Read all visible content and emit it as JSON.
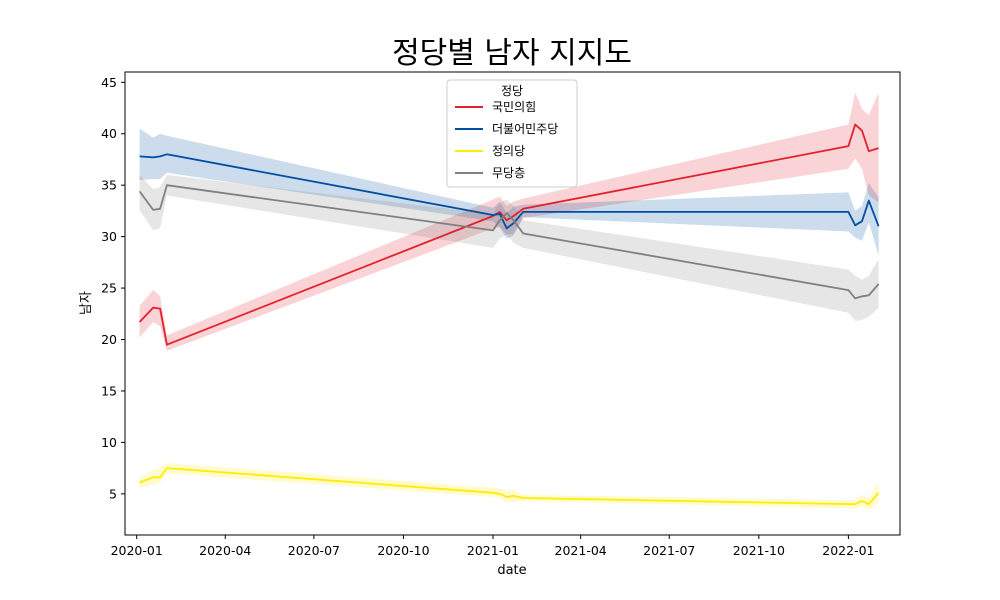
{
  "chart_data": {
    "type": "line",
    "title": "정당별 남자 지지도",
    "xlabel": "date",
    "ylabel": "남자",
    "x_ticks": [
      "2020-01",
      "2020-04",
      "2020-07",
      "2020-10",
      "2021-01",
      "2021-04",
      "2021-07",
      "2021-10",
      "2022-01"
    ],
    "xlim": [
      "2019-12-20",
      "2022-02-23"
    ],
    "y_ticks": [
      5,
      10,
      15,
      20,
      25,
      30,
      35,
      40,
      45
    ],
    "ylim": [
      1,
      46
    ],
    "grid": false,
    "legend": {
      "title": "정당",
      "placement": "upper center"
    },
    "series": [
      {
        "name": "국민의힘",
        "color": "#e3212c",
        "points": [
          {
            "x": "2020-01-04",
            "y": 21.7,
            "lo": 20.2,
            "hi": 23.3
          },
          {
            "x": "2020-01-18",
            "y": 23.1,
            "lo": 21.7,
            "hi": 24.8
          },
          {
            "x": "2020-01-25",
            "y": 23.0,
            "lo": 21.3,
            "hi": 24.2
          },
          {
            "x": "2020-02-01",
            "y": 19.5,
            "lo": 18.9,
            "hi": 20.4
          },
          {
            "x": "2021-01-01",
            "y": 32.0,
            "lo": 30.8,
            "hi": 33.6
          },
          {
            "x": "2021-01-08",
            "y": 32.4,
            "lo": 30.9,
            "hi": 33.9
          },
          {
            "x": "2021-01-15",
            "y": 31.6,
            "lo": 30.2,
            "hi": 33.0
          },
          {
            "x": "2021-01-22",
            "y": 32.0,
            "lo": 30.3,
            "hi": 33.4
          },
          {
            "x": "2021-02-01",
            "y": 32.7,
            "lo": 31.8,
            "hi": 33.7
          },
          {
            "x": "2022-01-01",
            "y": 38.8,
            "lo": 36.6,
            "hi": 40.9
          },
          {
            "x": "2022-01-08",
            "y": 40.9,
            "lo": 37.6,
            "hi": 44.0
          },
          {
            "x": "2022-01-15",
            "y": 40.3,
            "lo": 36.6,
            "hi": 42.4
          },
          {
            "x": "2022-01-22",
            "y": 38.3,
            "lo": 34.0,
            "hi": 41.8
          },
          {
            "x": "2022-02-01",
            "y": 38.6,
            "lo": 33.3,
            "hi": 44.0
          }
        ]
      },
      {
        "name": "더불어민주당",
        "color": "#004ea2",
        "points": [
          {
            "x": "2020-01-04",
            "y": 37.8,
            "lo": 35.5,
            "hi": 40.5
          },
          {
            "x": "2020-01-18",
            "y": 37.7,
            "lo": 35.6,
            "hi": 39.6
          },
          {
            "x": "2020-01-25",
            "y": 37.8,
            "lo": 35.6,
            "hi": 40.0
          },
          {
            "x": "2020-02-01",
            "y": 38.0,
            "lo": 36.2,
            "hi": 39.8
          },
          {
            "x": "2021-01-01",
            "y": 32.1,
            "lo": 31.5,
            "hi": 32.8
          },
          {
            "x": "2021-01-08",
            "y": 32.2,
            "lo": 30.9,
            "hi": 33.4
          },
          {
            "x": "2021-01-15",
            "y": 30.8,
            "lo": 29.8,
            "hi": 32.3
          },
          {
            "x": "2021-01-22",
            "y": 31.3,
            "lo": 30.1,
            "hi": 32.9
          },
          {
            "x": "2021-02-01",
            "y": 32.4,
            "lo": 31.9,
            "hi": 33.1
          },
          {
            "x": "2022-01-01",
            "y": 32.4,
            "lo": 30.5,
            "hi": 34.3
          },
          {
            "x": "2022-01-08",
            "y": 31.1,
            "lo": 29.9,
            "hi": 32.5
          },
          {
            "x": "2022-01-15",
            "y": 31.5,
            "lo": 29.6,
            "hi": 33.0
          },
          {
            "x": "2022-01-22",
            "y": 33.5,
            "lo": 31.4,
            "hi": 35.2
          },
          {
            "x": "2022-02-01",
            "y": 31.0,
            "lo": 28.2,
            "hi": 33.8
          }
        ]
      },
      {
        "name": "정의당",
        "color": "#ffed00",
        "points": [
          {
            "x": "2020-01-04",
            "y": 6.1,
            "lo": 5.6,
            "hi": 6.6
          },
          {
            "x": "2020-01-18",
            "y": 6.6,
            "lo": 5.9,
            "hi": 7.3
          },
          {
            "x": "2020-01-25",
            "y": 6.6,
            "lo": 6.1,
            "hi": 7.5
          },
          {
            "x": "2020-02-01",
            "y": 7.5,
            "lo": 7.0,
            "hi": 8.0
          },
          {
            "x": "2021-01-01",
            "y": 5.1,
            "lo": 4.7,
            "hi": 5.6
          },
          {
            "x": "2021-01-08",
            "y": 5.0,
            "lo": 4.6,
            "hi": 5.5
          },
          {
            "x": "2021-01-15",
            "y": 4.7,
            "lo": 4.2,
            "hi": 5.3
          },
          {
            "x": "2021-01-22",
            "y": 4.8,
            "lo": 4.2,
            "hi": 5.4
          },
          {
            "x": "2021-02-01",
            "y": 4.6,
            "lo": 4.3,
            "hi": 4.9
          },
          {
            "x": "2022-01-01",
            "y": 4.0,
            "lo": 3.6,
            "hi": 4.4
          },
          {
            "x": "2022-01-08",
            "y": 4.0,
            "lo": 3.5,
            "hi": 4.4
          },
          {
            "x": "2022-01-15",
            "y": 4.3,
            "lo": 3.8,
            "hi": 4.9
          },
          {
            "x": "2022-01-22",
            "y": 4.0,
            "lo": 3.4,
            "hi": 4.6
          },
          {
            "x": "2022-02-01",
            "y": 5.1,
            "lo": 4.2,
            "hi": 6.2
          }
        ]
      },
      {
        "name": "무당층",
        "color": "#808080",
        "points": [
          {
            "x": "2020-01-04",
            "y": 34.4,
            "lo": 32.6,
            "hi": 36.0
          },
          {
            "x": "2020-01-18",
            "y": 32.6,
            "lo": 30.6,
            "hi": 34.6
          },
          {
            "x": "2020-01-25",
            "y": 32.7,
            "lo": 30.8,
            "hi": 34.8
          },
          {
            "x": "2020-02-01",
            "y": 35.0,
            "lo": 34.0,
            "hi": 36.0
          },
          {
            "x": "2021-01-01",
            "y": 30.6,
            "lo": 28.9,
            "hi": 32.2
          },
          {
            "x": "2021-01-08",
            "y": 31.6,
            "lo": 29.8,
            "hi": 33.3
          },
          {
            "x": "2021-01-15",
            "y": 32.3,
            "lo": 30.2,
            "hi": 33.6
          },
          {
            "x": "2021-01-22",
            "y": 31.6,
            "lo": 29.4,
            "hi": 33.0
          },
          {
            "x": "2021-02-01",
            "y": 30.3,
            "lo": 28.9,
            "hi": 31.6
          },
          {
            "x": "2022-01-01",
            "y": 24.8,
            "lo": 22.6,
            "hi": 26.8
          },
          {
            "x": "2022-01-08",
            "y": 24.0,
            "lo": 21.8,
            "hi": 26.2
          },
          {
            "x": "2022-01-15",
            "y": 24.2,
            "lo": 21.9,
            "hi": 25.8
          },
          {
            "x": "2022-01-22",
            "y": 24.3,
            "lo": 22.2,
            "hi": 26.2
          },
          {
            "x": "2022-02-01",
            "y": 25.4,
            "lo": 23.1,
            "hi": 27.8
          }
        ]
      }
    ]
  }
}
